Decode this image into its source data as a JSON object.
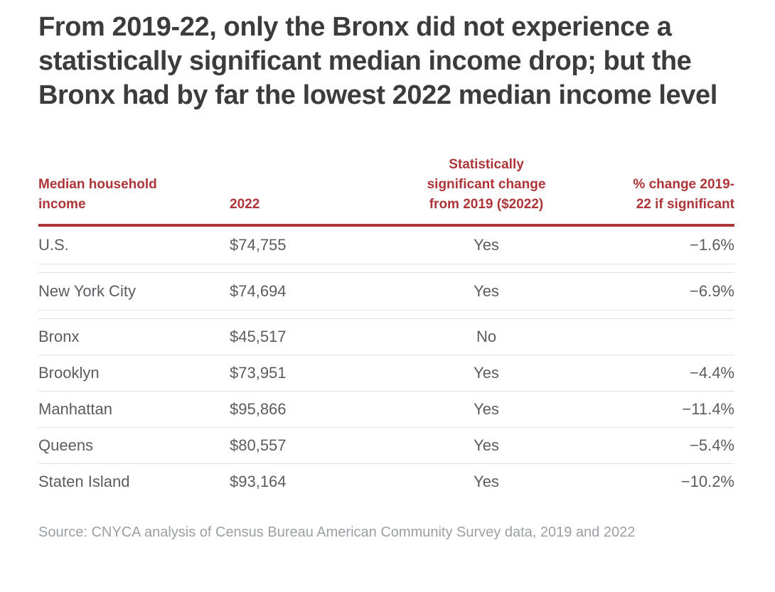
{
  "colors": {
    "accent_red": "#ad3538",
    "title_text": "#3b3c3e",
    "body_text": "#595d61",
    "muted_text": "#9ba0a4",
    "divider": "#dfe1e2",
    "background": "#ffffff"
  },
  "chart_data": {
    "type": "table",
    "title": "From 2019-22, only the Bronx did not experience a statistically significant median income drop; but the Bronx had by far the lowest 2022 median income level",
    "columns": [
      "Median household\nincome",
      "2022",
      "Statistically\nsignificant change\nfrom 2019 ($2022)",
      "% change 2019-\n22 if significant"
    ],
    "columns_full": [
      "Median household income",
      "2022",
      "Statistically significant change from 2019 ($2022)",
      "% change 2019-22 if significant"
    ],
    "rows": [
      [
        "U.S.",
        "$74,755",
        "Yes",
        "−1.6%"
      ],
      [
        "New York City",
        "$74,694",
        "Yes",
        "−6.9%"
      ],
      [
        "Bronx",
        "$45,517",
        "No",
        ""
      ],
      [
        "Brooklyn",
        "$73,951",
        "Yes",
        "−4.4%"
      ],
      [
        "Manhattan",
        "$95,866",
        "Yes",
        "−11.4%"
      ],
      [
        "Queens",
        "$80,557",
        "Yes",
        "−5.4%"
      ],
      [
        "Staten Island",
        "$93,164",
        "Yes",
        "−10.2%"
      ]
    ],
    "income_values_usd": [
      74755,
      74694,
      45517,
      73951,
      95866,
      80557,
      93164
    ],
    "pct_change_values": [
      -1.6,
      -6.9,
      null,
      -4.4,
      -11.4,
      -5.4,
      -10.2
    ],
    "source": "Source: CNYCA analysis of Census Bureau American Community Survey data, 2019 and 2022"
  }
}
